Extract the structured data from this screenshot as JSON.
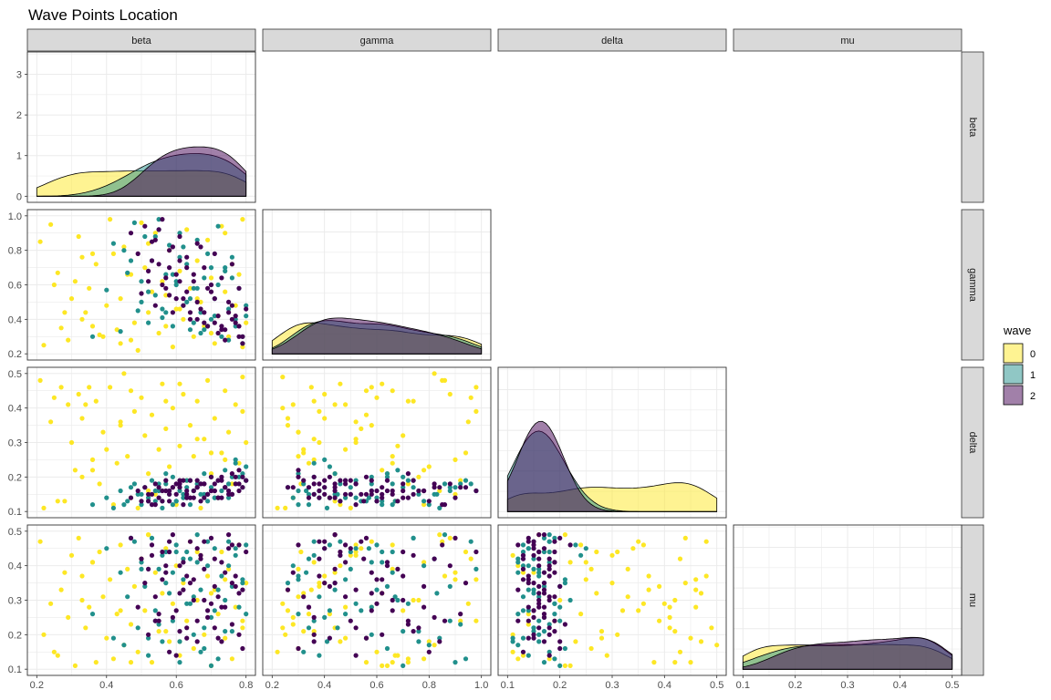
{
  "chart_data": {
    "type": "scatter",
    "title": "Wave Points Location",
    "variables": [
      "beta",
      "gamma",
      "delta",
      "mu"
    ],
    "ranges": {
      "beta": [
        0.2,
        0.8
      ],
      "gamma": [
        0.2,
        1.0
      ],
      "delta": [
        0.1,
        0.5
      ],
      "mu": [
        0.1,
        0.5
      ]
    },
    "ticks": {
      "beta": [
        "0.2",
        "0.4",
        "0.6",
        "0.8"
      ],
      "gamma": [
        "0.2",
        "0.4",
        "0.6",
        "0.8",
        "1.0"
      ],
      "delta": [
        "0.1",
        "0.2",
        "0.3",
        "0.4",
        "0.5"
      ],
      "mu": [
        "0.1",
        "0.2",
        "0.3",
        "0.4",
        "0.5"
      ],
      "density_beta": [
        "0",
        "1",
        "2",
        "3"
      ]
    },
    "density_ylim": [
      0,
      3.5
    ],
    "layout": "lower-triangle pairs plot; density curves on diagonal",
    "grid": true,
    "legend": {
      "title": "wave",
      "position": "right",
      "entries": [
        {
          "label": "0",
          "color": "#FDE725"
        },
        {
          "label": "1",
          "color": "#21908C"
        },
        {
          "label": "2",
          "color": "#440154"
        }
      ]
    },
    "waves": [
      {
        "name": "0",
        "color": "#FDE725",
        "beta": [
          0.21,
          0.22,
          0.24,
          0.26,
          0.27,
          0.29,
          0.3,
          0.31,
          0.32,
          0.33,
          0.34,
          0.35,
          0.36,
          0.37,
          0.38,
          0.39,
          0.4,
          0.41,
          0.42,
          0.43,
          0.44,
          0.45,
          0.46,
          0.47,
          0.48,
          0.49,
          0.5,
          0.51,
          0.52,
          0.53,
          0.54,
          0.55,
          0.56,
          0.57,
          0.58,
          0.59,
          0.6,
          0.61,
          0.62,
          0.63,
          0.64,
          0.65,
          0.66,
          0.67,
          0.68,
          0.69,
          0.7,
          0.71,
          0.72,
          0.73,
          0.74,
          0.75,
          0.76,
          0.77,
          0.78,
          0.79,
          0.8,
          0.25,
          0.36,
          0.44,
          0.52,
          0.61,
          0.7,
          0.79,
          0.28,
          0.47,
          0.66,
          0.33,
          0.57,
          0.74
        ],
        "gamma": [
          0.85,
          0.25,
          0.95,
          0.67,
          0.35,
          0.28,
          0.52,
          0.62,
          0.88,
          0.4,
          0.44,
          0.58,
          0.36,
          0.72,
          0.31,
          0.3,
          0.48,
          0.98,
          0.78,
          0.34,
          0.52,
          0.82,
          0.66,
          0.28,
          0.38,
          0.22,
          0.96,
          0.7,
          0.44,
          0.56,
          0.9,
          0.32,
          0.62,
          0.54,
          0.8,
          0.24,
          0.46,
          0.68,
          0.4,
          0.92,
          0.58,
          0.3,
          0.74,
          0.5,
          0.36,
          0.86,
          0.64,
          0.26,
          0.42,
          0.94,
          0.56,
          0.3,
          0.72,
          0.48,
          0.66,
          0.24,
          0.38,
          0.6,
          0.78,
          0.26,
          0.84,
          0.46,
          0.32,
          0.98,
          0.44,
          0.66,
          0.52,
          0.76,
          0.36,
          0.9
        ],
        "delta": [
          0.48,
          0.11,
          0.36,
          0.13,
          0.46,
          0.41,
          0.3,
          0.22,
          0.44,
          0.37,
          0.41,
          0.46,
          0.25,
          0.42,
          0.18,
          0.33,
          0.28,
          0.46,
          0.12,
          0.24,
          0.36,
          0.5,
          0.26,
          0.14,
          0.39,
          0.11,
          0.43,
          0.32,
          0.21,
          0.38,
          0.15,
          0.28,
          0.47,
          0.34,
          0.23,
          0.4,
          0.12,
          0.29,
          0.44,
          0.19,
          0.35,
          0.26,
          0.42,
          0.11,
          0.31,
          0.48,
          0.21,
          0.37,
          0.14,
          0.27,
          0.45,
          0.33,
          0.18,
          0.41,
          0.24,
          0.49,
          0.3,
          0.43,
          0.22,
          0.35,
          0.16,
          0.47,
          0.27,
          0.39,
          0.13,
          0.45,
          0.31,
          0.2,
          0.42,
          0.25
        ],
        "mu": [
          0.47,
          0.2,
          0.29,
          0.14,
          0.33,
          0.25,
          0.43,
          0.11,
          0.48,
          0.37,
          0.22,
          0.28,
          0.41,
          0.12,
          0.44,
          0.31,
          0.19,
          0.36,
          0.13,
          0.26,
          0.46,
          0.17,
          0.39,
          0.23,
          0.34,
          0.15,
          0.42,
          0.27,
          0.49,
          0.12,
          0.38,
          0.21,
          0.32,
          0.45,
          0.18,
          0.29,
          0.4,
          0.14,
          0.35,
          0.24,
          0.47,
          0.16,
          0.3,
          0.43,
          0.2,
          0.37,
          0.11,
          0.33,
          0.26,
          0.44,
          0.19,
          0.39,
          0.13,
          0.28,
          0.46,
          0.22,
          0.35,
          0.15,
          0.41,
          0.27,
          0.49,
          0.18,
          0.32,
          0.24,
          0.38,
          0.12,
          0.44,
          0.3,
          0.21,
          0.36
        ]
      },
      {
        "name": "1",
        "color": "#21908C",
        "beta": [
          0.36,
          0.4,
          0.42,
          0.44,
          0.46,
          0.48,
          0.49,
          0.5,
          0.51,
          0.52,
          0.53,
          0.54,
          0.55,
          0.56,
          0.57,
          0.58,
          0.59,
          0.6,
          0.61,
          0.62,
          0.63,
          0.64,
          0.65,
          0.66,
          0.67,
          0.68,
          0.69,
          0.7,
          0.71,
          0.72,
          0.73,
          0.74,
          0.75,
          0.76,
          0.77,
          0.78,
          0.79,
          0.8,
          0.45,
          0.5,
          0.55,
          0.6,
          0.65,
          0.7,
          0.75,
          0.8,
          0.47,
          0.52,
          0.57,
          0.62,
          0.67,
          0.72,
          0.77,
          0.54,
          0.59,
          0.64,
          0.69,
          0.74,
          0.79,
          0.56,
          0.61,
          0.66,
          0.71,
          0.76,
          0.63,
          0.68
        ],
        "gamma": [
          0.3,
          0.57,
          0.84,
          0.33,
          0.67,
          0.96,
          0.45,
          0.62,
          0.88,
          0.38,
          0.74,
          0.54,
          0.98,
          0.41,
          0.66,
          0.83,
          0.36,
          0.6,
          0.9,
          0.48,
          0.72,
          0.34,
          0.58,
          0.86,
          0.44,
          0.64,
          0.78,
          0.4,
          0.52,
          0.94,
          0.3,
          0.68,
          0.46,
          0.76,
          0.36,
          0.58,
          0.26,
          0.42,
          0.8,
          0.5,
          0.92,
          0.62,
          0.38,
          0.7,
          0.28,
          0.48,
          0.74,
          0.56,
          0.44,
          0.82,
          0.32,
          0.6,
          0.4,
          0.88,
          0.66,
          0.52,
          0.36,
          0.7,
          0.3,
          0.46,
          0.76,
          0.58,
          0.42,
          0.64,
          0.5,
          0.34
        ],
        "delta": [
          0.12,
          0.14,
          0.11,
          0.16,
          0.13,
          0.18,
          0.15,
          0.12,
          0.17,
          0.14,
          0.19,
          0.13,
          0.16,
          0.11,
          0.18,
          0.15,
          0.2,
          0.13,
          0.17,
          0.14,
          0.19,
          0.12,
          0.16,
          0.18,
          0.15,
          0.21,
          0.13,
          0.17,
          0.14,
          0.19,
          0.16,
          0.22,
          0.18,
          0.15,
          0.24,
          0.2,
          0.17,
          0.23,
          0.12,
          0.15,
          0.18,
          0.13,
          0.16,
          0.2,
          0.14,
          0.19,
          0.17,
          0.13,
          0.21,
          0.15,
          0.18,
          0.14,
          0.25,
          0.16,
          0.12,
          0.19,
          0.15,
          0.17,
          0.21,
          0.13,
          0.16,
          0.18,
          0.14,
          0.2,
          0.17,
          0.15
        ],
        "mu": [
          0.26,
          0.45,
          0.19,
          0.38,
          0.31,
          0.47,
          0.22,
          0.41,
          0.34,
          0.14,
          0.48,
          0.27,
          0.39,
          0.18,
          0.44,
          0.32,
          0.24,
          0.46,
          0.12,
          0.36,
          0.29,
          0.42,
          0.2,
          0.49,
          0.33,
          0.16,
          0.4,
          0.25,
          0.45,
          0.13,
          0.37,
          0.3,
          0.47,
          0.21,
          0.43,
          0.28,
          0.35,
          0.46,
          0.17,
          0.39,
          0.23,
          0.44,
          0.31,
          0.11,
          0.4,
          0.26,
          0.48,
          0.19,
          0.35,
          0.42,
          0.15,
          0.33,
          0.45,
          0.24,
          0.38,
          0.29,
          0.47,
          0.21,
          0.36,
          0.43,
          0.18,
          0.41,
          0.27,
          0.34,
          0.44,
          0.22
        ]
      },
      {
        "name": "2",
        "color": "#440154",
        "beta": [
          0.47,
          0.49,
          0.5,
          0.51,
          0.52,
          0.53,
          0.54,
          0.55,
          0.56,
          0.57,
          0.58,
          0.59,
          0.6,
          0.61,
          0.62,
          0.63,
          0.64,
          0.65,
          0.66,
          0.67,
          0.68,
          0.69,
          0.7,
          0.71,
          0.72,
          0.73,
          0.74,
          0.75,
          0.76,
          0.77,
          0.78,
          0.79,
          0.8,
          0.52,
          0.55,
          0.58,
          0.61,
          0.64,
          0.67,
          0.7,
          0.73,
          0.76,
          0.79,
          0.54,
          0.57,
          0.6,
          0.63,
          0.66,
          0.69,
          0.72,
          0.75,
          0.78,
          0.53,
          0.56,
          0.59,
          0.62,
          0.65,
          0.68,
          0.71,
          0.74,
          0.77,
          0.58,
          0.63,
          0.68,
          0.73,
          0.78,
          0.61,
          0.66,
          0.71,
          0.76
        ],
        "gamma": [
          0.9,
          0.78,
          0.55,
          0.94,
          0.62,
          0.85,
          0.48,
          0.72,
          0.98,
          0.58,
          0.8,
          0.44,
          0.66,
          0.88,
          0.52,
          0.76,
          0.4,
          0.62,
          0.84,
          0.46,
          0.7,
          0.36,
          0.56,
          0.78,
          0.42,
          0.64,
          0.34,
          0.5,
          0.72,
          0.38,
          0.58,
          0.3,
          0.46,
          0.68,
          0.92,
          0.54,
          0.74,
          0.44,
          0.82,
          0.6,
          0.36,
          0.48,
          0.26,
          0.86,
          0.64,
          0.52,
          0.7,
          0.4,
          0.58,
          0.32,
          0.44,
          0.36,
          0.74,
          0.6,
          0.82,
          0.48,
          0.66,
          0.38,
          0.52,
          0.28,
          0.42,
          0.7,
          0.56,
          0.44,
          0.34,
          0.3,
          0.62,
          0.5,
          0.38,
          0.4
        ],
        "delta": [
          0.14,
          0.16,
          0.13,
          0.17,
          0.15,
          0.12,
          0.18,
          0.14,
          0.16,
          0.19,
          0.13,
          0.17,
          0.15,
          0.18,
          0.12,
          0.16,
          0.19,
          0.14,
          0.17,
          0.13,
          0.18,
          0.15,
          0.2,
          0.16,
          0.14,
          0.19,
          0.17,
          0.15,
          0.21,
          0.18,
          0.16,
          0.2,
          0.19,
          0.13,
          0.17,
          0.15,
          0.19,
          0.14,
          0.18,
          0.16,
          0.2,
          0.15,
          0.17,
          0.12,
          0.16,
          0.18,
          0.14,
          0.17,
          0.15,
          0.19,
          0.16,
          0.18,
          0.15,
          0.13,
          0.17,
          0.19,
          0.16,
          0.14,
          0.18,
          0.17,
          0.2,
          0.16,
          0.15,
          0.18,
          0.14,
          0.22,
          0.17,
          0.19,
          0.16,
          0.15
        ],
        "mu": [
          0.48,
          0.28,
          0.42,
          0.35,
          0.2,
          0.46,
          0.31,
          0.24,
          0.44,
          0.38,
          0.15,
          0.49,
          0.27,
          0.4,
          0.33,
          0.22,
          0.47,
          0.36,
          0.18,
          0.43,
          0.3,
          0.25,
          0.48,
          0.34,
          0.19,
          0.41,
          0.28,
          0.45,
          0.23,
          0.37,
          0.32,
          0.16,
          0.44,
          0.39,
          0.26,
          0.47,
          0.21,
          0.35,
          0.42,
          0.29,
          0.18,
          0.46,
          0.33,
          0.24,
          0.4,
          0.14,
          0.37,
          0.45,
          0.27,
          0.31,
          0.49,
          0.2,
          0.43,
          0.36,
          0.25,
          0.41,
          0.3,
          0.47,
          0.22,
          0.38,
          0.34,
          0.44,
          0.19,
          0.39,
          0.28,
          0.46,
          0.32,
          0.24,
          0.42,
          0.35
        ]
      }
    ]
  }
}
